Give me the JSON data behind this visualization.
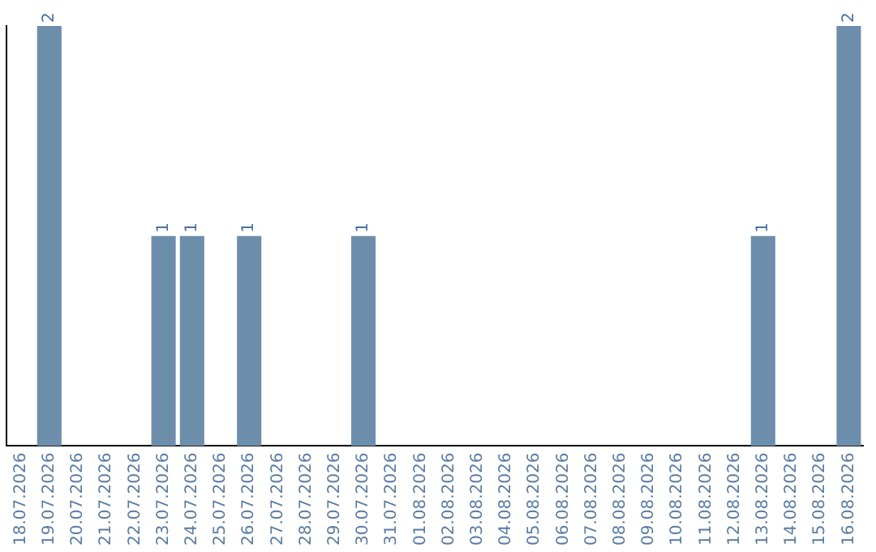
{
  "chart_data": {
    "type": "bar",
    "categories": [
      "18.07.2026",
      "19.07.2026",
      "20.07.2026",
      "21.07.2026",
      "22.07.2026",
      "23.07.2026",
      "24.07.2026",
      "25.07.2026",
      "26.07.2026",
      "27.07.2026",
      "28.07.2026",
      "29.07.2026",
      "30.07.2026",
      "31.07.2026",
      "01.08.2026",
      "02.08.2026",
      "03.08.2026",
      "04.08.2026",
      "05.08.2026",
      "06.08.2026",
      "07.08.2026",
      "08.08.2026",
      "09.08.2026",
      "10.08.2026",
      "11.08.2026",
      "12.08.2026",
      "13.08.2026",
      "14.08.2026",
      "15.08.2026",
      "16.08.2026"
    ],
    "values": [
      0,
      2,
      0,
      0,
      0,
      1,
      1,
      0,
      1,
      0,
      0,
      0,
      1,
      0,
      0,
      0,
      0,
      0,
      0,
      0,
      0,
      0,
      0,
      0,
      0,
      0,
      1,
      0,
      0,
      2
    ],
    "value_labels": [
      null,
      "2",
      null,
      null,
      null,
      "1",
      "1",
      null,
      "1",
      null,
      null,
      null,
      "1",
      null,
      null,
      null,
      null,
      null,
      null,
      null,
      null,
      null,
      null,
      null,
      null,
      null,
      "1",
      null,
      null,
      "2"
    ],
    "color": "#6d8eab",
    "tick_labels": "x",
    "grid": false,
    "legend": false
  }
}
